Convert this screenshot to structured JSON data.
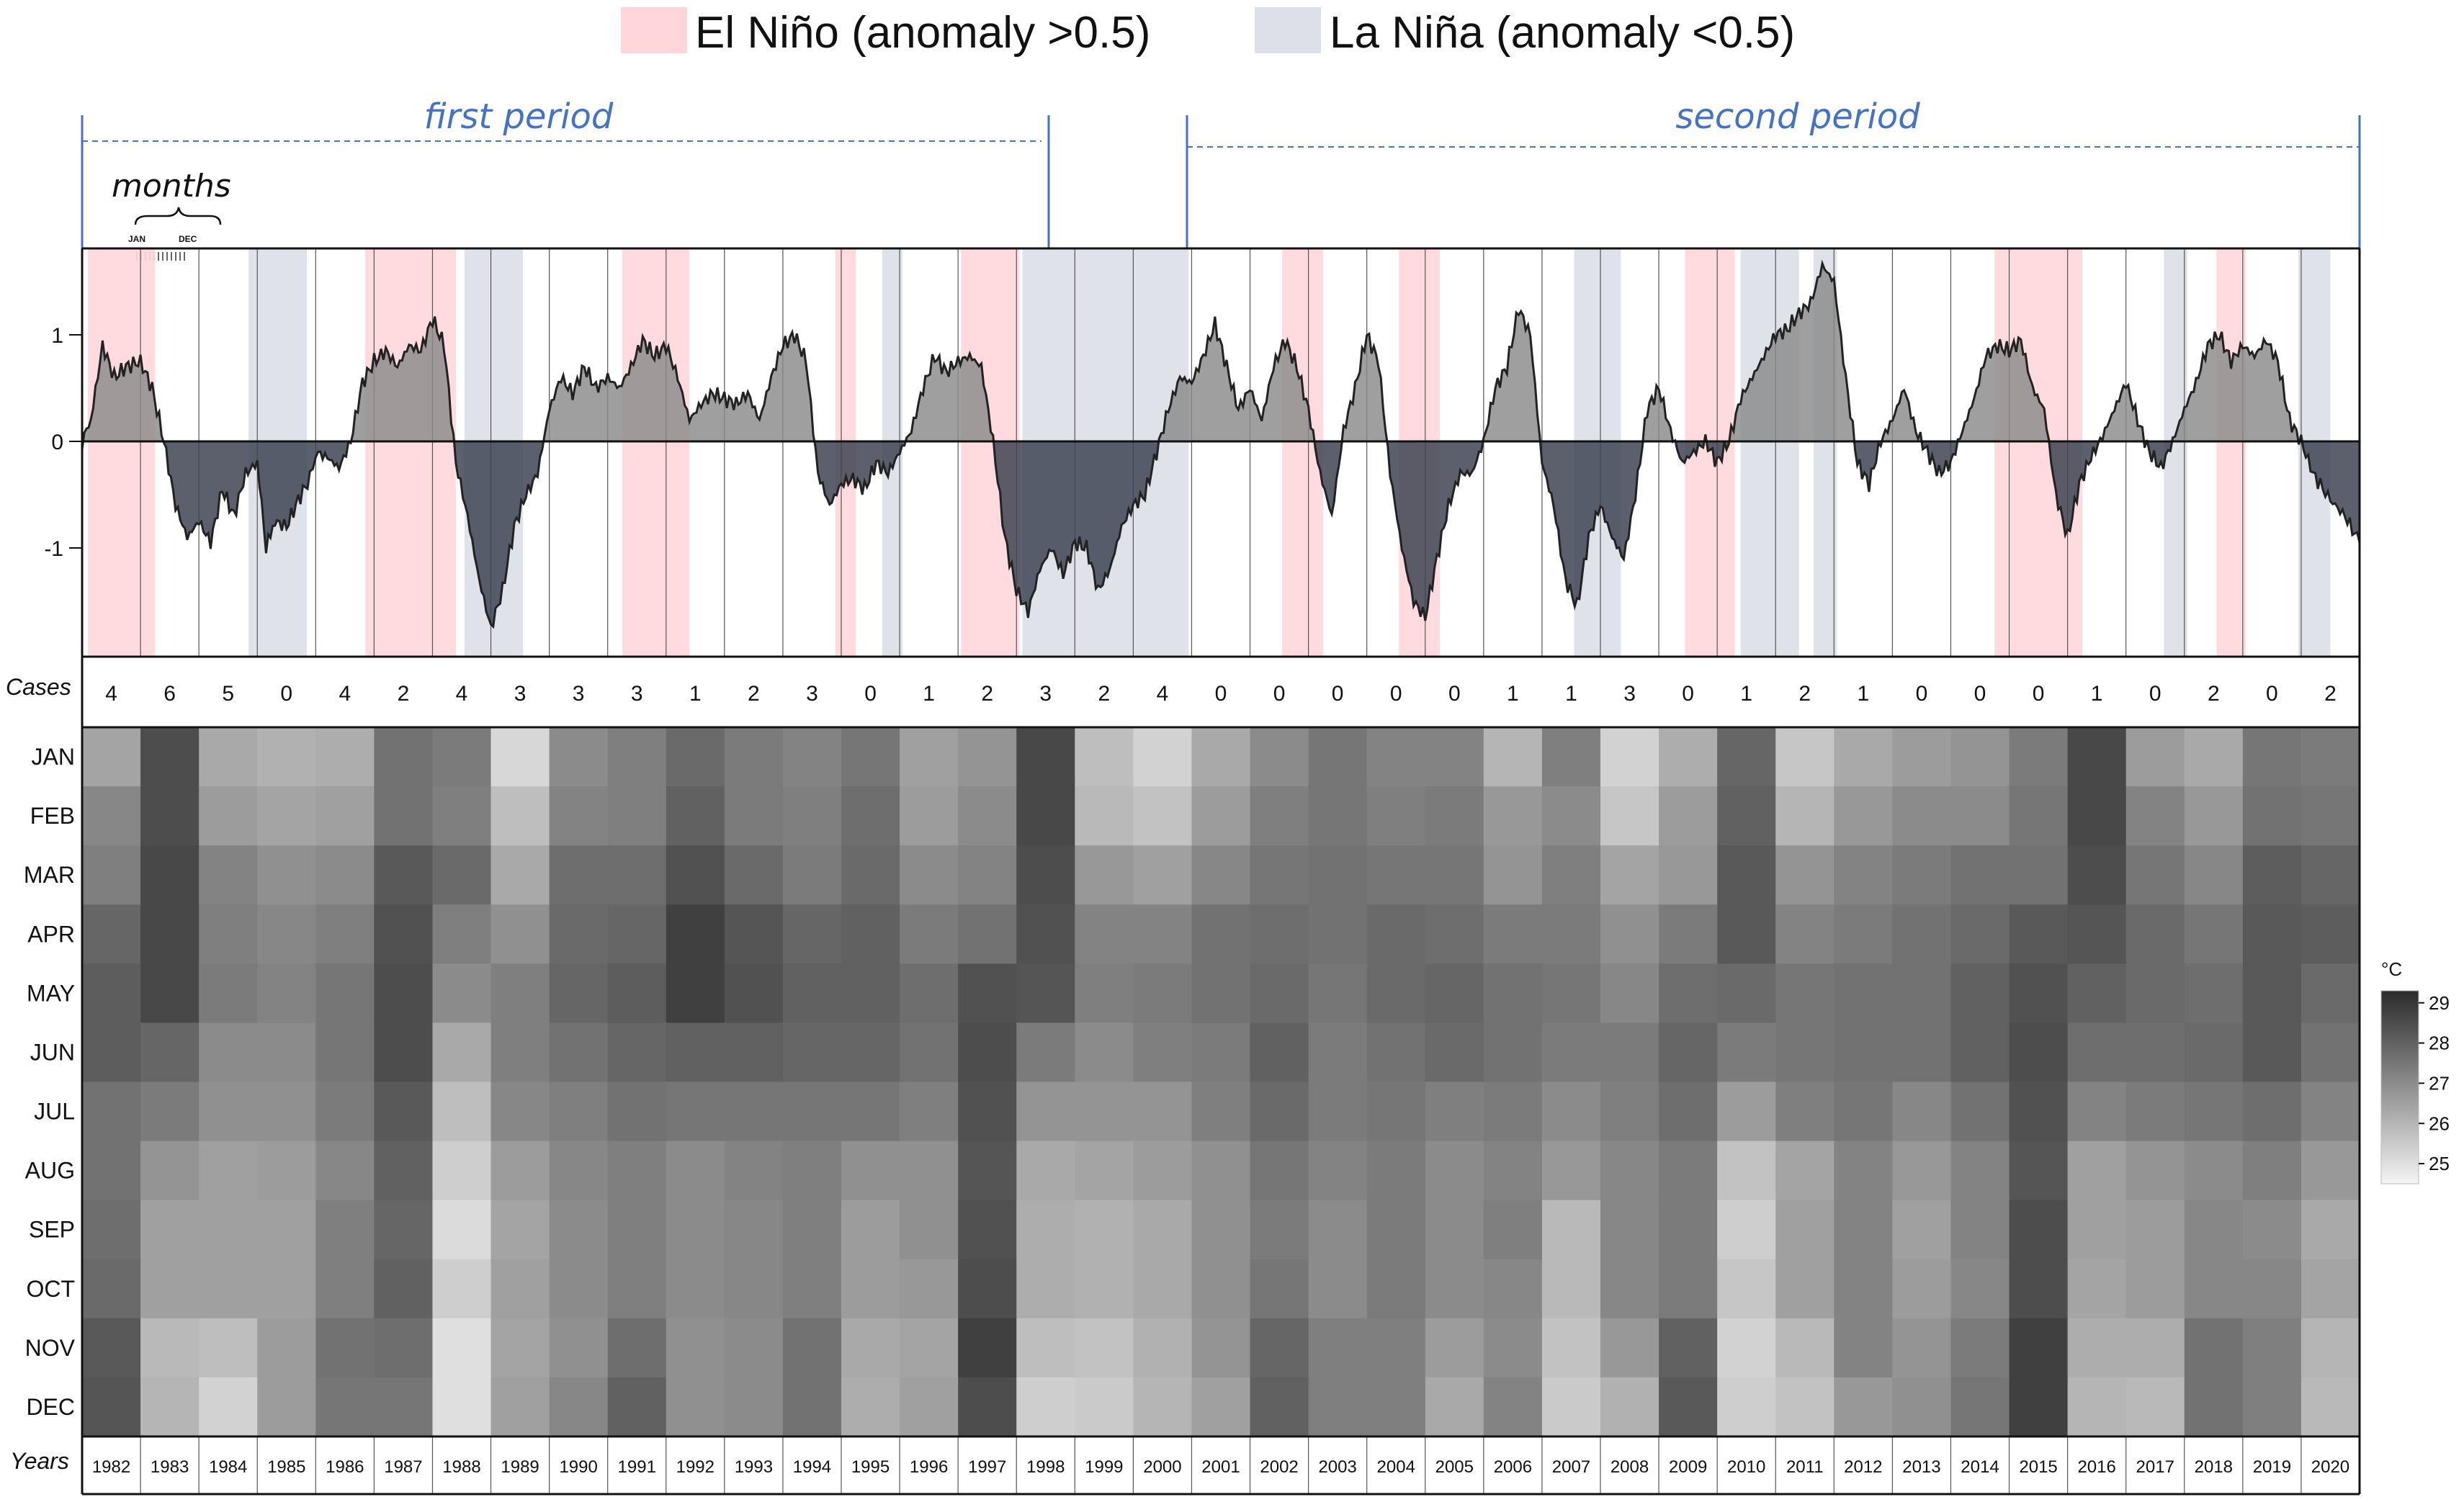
{
  "legend": {
    "el_nino_label": "El Niño (anomaly >0.5)",
    "la_nina_label": "La Niña (anomaly <0.5)",
    "el_nino_color": "#ffd6da",
    "la_nina_color": "#dde0e8"
  },
  "periods": {
    "first": "first period",
    "second": "second period",
    "months_label": "months",
    "jan_label": "JAN",
    "dec_label": "DEC",
    "color": "#4472c4"
  },
  "labels": {
    "cases": "Cases",
    "years": "Years",
    "colorbar_unit": "°C"
  },
  "chart_data": {
    "type": "area",
    "title": "",
    "ylim": [
      -1.95,
      1.7
    ],
    "yticks": [
      1,
      0,
      -1
    ],
    "ytick_labels": [
      "1",
      "0",
      "-1"
    ],
    "years": [
      "1982",
      "1983",
      "1984",
      "1985",
      "1986",
      "1987",
      "1988",
      "1989",
      "1990",
      "1991",
      "1992",
      "1993",
      "1994",
      "1995",
      "1996",
      "1997",
      "1998",
      "1999",
      "2000",
      "2001",
      "2002",
      "2003",
      "2004",
      "2005",
      "2006",
      "2007",
      "2008",
      "2009",
      "2010",
      "2011",
      "2012",
      "2013",
      "2014",
      "2015",
      "2016",
      "2017",
      "2018",
      "2019",
      "2020"
    ],
    "cases": [
      4,
      6,
      5,
      0,
      4,
      2,
      4,
      3,
      3,
      3,
      1,
      2,
      3,
      0,
      1,
      2,
      3,
      2,
      4,
      0,
      0,
      0,
      0,
      0,
      1,
      1,
      3,
      0,
      1,
      2,
      1,
      0,
      0,
      0,
      1,
      0,
      2,
      0,
      2
    ],
    "anomaly_keypoints": [
      [
        1982.0,
        0.0
      ],
      [
        1982.15,
        0.2
      ],
      [
        1982.35,
        0.9
      ],
      [
        1982.55,
        0.6
      ],
      [
        1982.75,
        0.7
      ],
      [
        1983.0,
        0.75
      ],
      [
        1983.2,
        0.5
      ],
      [
        1983.4,
        0.0
      ],
      [
        1983.6,
        -0.6
      ],
      [
        1983.8,
        -0.9
      ],
      [
        1984.0,
        -0.75
      ],
      [
        1984.2,
        -0.95
      ],
      [
        1984.4,
        -0.45
      ],
      [
        1984.6,
        -0.7
      ],
      [
        1984.8,
        -0.3
      ],
      [
        1985.0,
        -0.2
      ],
      [
        1985.15,
        -1.0
      ],
      [
        1985.3,
        -0.75
      ],
      [
        1985.5,
        -0.8
      ],
      [
        1985.7,
        -0.55
      ],
      [
        1985.9,
        -0.35
      ],
      [
        1986.0,
        -0.1
      ],
      [
        1986.2,
        -0.15
      ],
      [
        1986.4,
        -0.25
      ],
      [
        1986.6,
        0.0
      ],
      [
        1986.8,
        0.55
      ],
      [
        1987.0,
        0.75
      ],
      [
        1987.2,
        0.85
      ],
      [
        1987.4,
        0.7
      ],
      [
        1987.6,
        0.9
      ],
      [
        1987.8,
        0.85
      ],
      [
        1988.0,
        1.15
      ],
      [
        1988.2,
        0.9
      ],
      [
        1988.4,
        -0.2
      ],
      [
        1988.6,
        -0.7
      ],
      [
        1988.8,
        -1.3
      ],
      [
        1989.0,
        -1.75
      ],
      [
        1989.2,
        -1.4
      ],
      [
        1989.4,
        -0.8
      ],
      [
        1989.6,
        -0.5
      ],
      [
        1989.8,
        -0.3
      ],
      [
        1990.0,
        0.3
      ],
      [
        1990.2,
        0.6
      ],
      [
        1990.4,
        0.45
      ],
      [
        1990.6,
        0.7
      ],
      [
        1990.8,
        0.5
      ],
      [
        1991.0,
        0.6
      ],
      [
        1991.2,
        0.5
      ],
      [
        1991.4,
        0.7
      ],
      [
        1991.6,
        0.95
      ],
      [
        1991.8,
        0.8
      ],
      [
        1992.0,
        0.9
      ],
      [
        1992.2,
        0.6
      ],
      [
        1992.4,
        0.2
      ],
      [
        1992.6,
        0.35
      ],
      [
        1992.8,
        0.45
      ],
      [
        1993.0,
        0.4
      ],
      [
        1993.2,
        0.35
      ],
      [
        1993.4,
        0.45
      ],
      [
        1993.6,
        0.2
      ],
      [
        1993.8,
        0.6
      ],
      [
        1994.0,
        0.9
      ],
      [
        1994.2,
        1.0
      ],
      [
        1994.4,
        0.75
      ],
      [
        1994.6,
        -0.3
      ],
      [
        1994.8,
        -0.6
      ],
      [
        1995.0,
        -0.4
      ],
      [
        1995.2,
        -0.35
      ],
      [
        1995.4,
        -0.45
      ],
      [
        1995.6,
        -0.2
      ],
      [
        1995.8,
        -0.3
      ],
      [
        1996.0,
        -0.1
      ],
      [
        1996.2,
        0.1
      ],
      [
        1996.4,
        0.5
      ],
      [
        1996.6,
        0.8
      ],
      [
        1996.8,
        0.65
      ],
      [
        1997.0,
        0.75
      ],
      [
        1997.2,
        0.8
      ],
      [
        1997.4,
        0.7
      ],
      [
        1997.6,
        0.0
      ],
      [
        1997.8,
        -0.9
      ],
      [
        1998.0,
        -1.4
      ],
      [
        1998.2,
        -1.6
      ],
      [
        1998.4,
        -1.2
      ],
      [
        1998.6,
        -1.0
      ],
      [
        1998.8,
        -1.25
      ],
      [
        1999.0,
        -0.95
      ],
      [
        1999.2,
        -1.0
      ],
      [
        1999.4,
        -1.4
      ],
      [
        1999.6,
        -1.2
      ],
      [
        1999.8,
        -0.8
      ],
      [
        2000.0,
        -0.6
      ],
      [
        2000.2,
        -0.5
      ],
      [
        2000.4,
        -0.1
      ],
      [
        2000.6,
        0.3
      ],
      [
        2000.8,
        0.6
      ],
      [
        2001.0,
        0.55
      ],
      [
        2001.2,
        0.8
      ],
      [
        2001.4,
        1.1
      ],
      [
        2001.6,
        0.7
      ],
      [
        2001.8,
        0.3
      ],
      [
        2002.0,
        0.5
      ],
      [
        2002.2,
        0.2
      ],
      [
        2002.4,
        0.7
      ],
      [
        2002.6,
        0.95
      ],
      [
        2002.8,
        0.7
      ],
      [
        2003.0,
        0.3
      ],
      [
        2003.2,
        -0.3
      ],
      [
        2003.4,
        -0.7
      ],
      [
        2003.6,
        0.1
      ],
      [
        2003.8,
        0.5
      ],
      [
        2004.0,
        1.0
      ],
      [
        2004.2,
        0.75
      ],
      [
        2004.4,
        -0.3
      ],
      [
        2004.6,
        -1.0
      ],
      [
        2004.8,
        -1.5
      ],
      [
        2005.0,
        -1.65
      ],
      [
        2005.2,
        -1.1
      ],
      [
        2005.4,
        -0.6
      ],
      [
        2005.6,
        -0.3
      ],
      [
        2005.8,
        -0.3
      ],
      [
        2006.0,
        0.0
      ],
      [
        2006.2,
        0.5
      ],
      [
        2006.4,
        0.7
      ],
      [
        2006.6,
        1.25
      ],
      [
        2006.8,
        1.0
      ],
      [
        2007.0,
        -0.2
      ],
      [
        2007.2,
        -0.6
      ],
      [
        2007.4,
        -1.3
      ],
      [
        2007.6,
        -1.55
      ],
      [
        2007.8,
        -0.9
      ],
      [
        2008.0,
        -0.6
      ],
      [
        2008.2,
        -0.9
      ],
      [
        2008.4,
        -1.1
      ],
      [
        2008.6,
        -0.5
      ],
      [
        2008.8,
        0.3
      ],
      [
        2009.0,
        0.5
      ],
      [
        2009.2,
        0.1
      ],
      [
        2009.4,
        -0.2
      ],
      [
        2009.6,
        -0.1
      ],
      [
        2009.8,
        0.0
      ],
      [
        2010.0,
        -0.2
      ],
      [
        2010.2,
        0.0
      ],
      [
        2010.4,
        0.4
      ],
      [
        2010.6,
        0.6
      ],
      [
        2010.8,
        0.8
      ],
      [
        2011.0,
        1.0
      ],
      [
        2011.2,
        1.05
      ],
      [
        2011.4,
        1.2
      ],
      [
        2011.6,
        1.3
      ],
      [
        2011.8,
        1.65
      ],
      [
        2012.0,
        1.5
      ],
      [
        2012.2,
        0.6
      ],
      [
        2012.4,
        -0.2
      ],
      [
        2012.6,
        -0.4
      ],
      [
        2012.8,
        0.0
      ],
      [
        2013.0,
        0.2
      ],
      [
        2013.2,
        0.5
      ],
      [
        2013.4,
        0.1
      ],
      [
        2013.6,
        -0.1
      ],
      [
        2013.8,
        -0.3
      ],
      [
        2014.0,
        -0.2
      ],
      [
        2014.2,
        0.1
      ],
      [
        2014.4,
        0.4
      ],
      [
        2014.6,
        0.8
      ],
      [
        2014.8,
        0.9
      ],
      [
        2015.0,
        0.85
      ],
      [
        2015.2,
        0.95
      ],
      [
        2015.4,
        0.5
      ],
      [
        2015.6,
        0.3
      ],
      [
        2015.8,
        -0.5
      ],
      [
        2016.0,
        -0.9
      ]
    ],
    "el_nino_spans": [
      [
        1982.1,
        1983.25
      ],
      [
        1986.85,
        1988.4
      ],
      [
        1991.25,
        1992.4
      ],
      [
        1994.9,
        1995.25
      ],
      [
        1997.05,
        1998.05
      ],
      [
        2002.55,
        2003.25
      ],
      [
        2004.55,
        2005.25
      ],
      [
        2009.45,
        2010.3
      ],
      [
        2014.75,
        2016.25
      ],
      [
        2018.55,
        2019.05
      ]
    ],
    "la_nina_spans": [
      [
        1984.85,
        1985.85
      ],
      [
        1988.55,
        1989.55
      ],
      [
        1995.7,
        1996.05
      ],
      [
        1998.1,
        2000.95
      ],
      [
        2007.55,
        2008.35
      ],
      [
        2010.4,
        2011.4
      ],
      [
        2011.65,
        2012.05
      ],
      [
        2017.65,
        2018.05
      ],
      [
        2019.95,
        2020.5
      ]
    ],
    "heatmap": {
      "rows": [
        "JAN",
        "FEB",
        "MAR",
        "APR",
        "MAY",
        "JUN",
        "JUL",
        "AUG",
        "SEP",
        "OCT",
        "NOV",
        "DEC"
      ],
      "colorbar": {
        "label": "°C",
        "ticks": [
          29,
          28,
          27,
          26,
          25
        ],
        "range": [
          24.5,
          29.3
        ]
      },
      "values": [
        [
          26.4,
          28.5,
          26.3,
          26.1,
          26.2,
          27.6,
          27.4,
          25.2,
          27.0,
          27.3,
          27.8,
          27.4,
          27.2,
          27.5,
          26.5,
          26.8,
          28.6,
          25.8,
          25.3,
          26.3,
          27.0,
          27.5,
          27.2,
          27.2,
          26.0,
          27.3,
          25.3,
          26.2,
          27.9,
          25.6,
          26.3,
          26.6,
          26.8,
          27.4,
          28.6,
          26.6,
          26.3,
          27.5,
          27.4
        ],
        [
          27.1,
          28.5,
          26.6,
          26.4,
          26.5,
          27.6,
          27.3,
          25.8,
          27.2,
          27.3,
          28.0,
          27.4,
          27.3,
          27.7,
          26.6,
          27.0,
          28.6,
          25.9,
          25.7,
          26.6,
          27.3,
          27.5,
          27.3,
          27.4,
          26.7,
          27.0,
          25.6,
          26.6,
          28.0,
          26.0,
          26.7,
          27.0,
          27.0,
          27.5,
          28.6,
          27.2,
          26.7,
          27.6,
          27.5
        ],
        [
          27.3,
          28.6,
          27.2,
          26.9,
          27.0,
          28.2,
          27.8,
          26.3,
          27.7,
          27.7,
          28.4,
          27.8,
          27.4,
          27.8,
          27.0,
          27.2,
          28.5,
          26.7,
          26.5,
          27.1,
          27.5,
          27.6,
          27.5,
          27.5,
          26.8,
          27.3,
          26.4,
          26.7,
          28.2,
          26.8,
          27.2,
          27.4,
          27.6,
          27.6,
          28.5,
          27.5,
          27.1,
          28.1,
          27.9
        ],
        [
          27.9,
          28.6,
          27.3,
          27.1,
          27.3,
          28.4,
          27.3,
          26.9,
          27.8,
          27.9,
          28.8,
          28.3,
          27.9,
          28.0,
          27.4,
          27.6,
          28.4,
          27.2,
          27.2,
          27.6,
          27.7,
          27.6,
          27.8,
          27.7,
          27.4,
          27.4,
          26.9,
          27.4,
          28.2,
          27.2,
          27.4,
          27.6,
          27.8,
          28.2,
          28.3,
          27.8,
          27.5,
          28.2,
          28.1
        ],
        [
          28.1,
          28.6,
          27.4,
          27.2,
          27.5,
          28.5,
          27.0,
          27.3,
          27.9,
          28.1,
          28.8,
          28.4,
          28.0,
          28.0,
          27.7,
          28.4,
          28.3,
          27.3,
          27.4,
          27.6,
          27.8,
          27.5,
          27.8,
          27.9,
          27.6,
          27.5,
          27.1,
          27.7,
          27.8,
          27.5,
          27.6,
          27.6,
          28.0,
          28.4,
          28.0,
          27.8,
          27.7,
          28.2,
          27.8
        ],
        [
          28.1,
          27.9,
          27.0,
          27.0,
          27.5,
          28.5,
          26.3,
          27.3,
          27.6,
          27.9,
          28.0,
          28.0,
          27.9,
          27.9,
          27.6,
          28.5,
          27.4,
          27.0,
          27.3,
          27.4,
          28.0,
          27.4,
          27.6,
          27.8,
          27.6,
          27.4,
          27.4,
          27.9,
          27.4,
          27.5,
          27.6,
          27.6,
          28.0,
          28.5,
          27.7,
          27.7,
          27.8,
          28.2,
          27.6
        ],
        [
          27.6,
          27.4,
          26.9,
          26.9,
          27.4,
          28.2,
          25.8,
          27.1,
          27.3,
          27.6,
          27.5,
          27.5,
          27.5,
          27.5,
          27.3,
          28.4,
          26.8,
          26.8,
          26.8,
          27.3,
          27.8,
          27.4,
          27.5,
          27.3,
          27.4,
          27.0,
          27.3,
          27.7,
          26.6,
          27.3,
          27.5,
          27.1,
          27.6,
          28.4,
          27.2,
          27.4,
          27.5,
          27.7,
          27.2
        ],
        [
          27.6,
          26.8,
          26.5,
          26.6,
          27.1,
          28.0,
          25.4,
          26.6,
          27.1,
          27.3,
          27.0,
          27.2,
          27.3,
          26.9,
          26.9,
          28.3,
          26.3,
          26.4,
          26.6,
          26.9,
          27.5,
          27.2,
          27.4,
          27.0,
          27.2,
          26.7,
          27.1,
          27.4,
          25.7,
          26.4,
          27.2,
          26.7,
          27.2,
          28.3,
          26.5,
          26.8,
          27.0,
          27.3,
          26.7
        ],
        [
          27.7,
          26.5,
          26.5,
          26.5,
          27.3,
          27.9,
          25.1,
          26.4,
          27.0,
          27.3,
          27.0,
          27.1,
          27.3,
          26.6,
          26.9,
          28.4,
          26.2,
          26.1,
          26.3,
          26.9,
          27.4,
          27.0,
          27.4,
          27.0,
          27.3,
          25.9,
          27.1,
          27.4,
          25.4,
          26.5,
          27.2,
          26.5,
          27.2,
          28.5,
          26.5,
          26.6,
          27.1,
          27.0,
          26.3
        ],
        [
          27.8,
          26.5,
          26.5,
          26.5,
          27.3,
          28.0,
          25.4,
          26.5,
          27.0,
          27.3,
          27.0,
          27.1,
          27.3,
          26.6,
          26.7,
          28.5,
          26.2,
          26.1,
          26.3,
          26.9,
          27.5,
          27.0,
          27.4,
          27.0,
          27.1,
          25.9,
          27.1,
          27.4,
          25.6,
          26.5,
          27.2,
          26.6,
          27.1,
          28.5,
          26.4,
          26.6,
          27.1,
          27.1,
          26.4
        ],
        [
          28.2,
          25.9,
          25.8,
          26.6,
          27.6,
          27.7,
          25.0,
          26.4,
          26.9,
          27.7,
          26.9,
          27.0,
          27.6,
          26.3,
          26.4,
          28.8,
          25.8,
          25.7,
          26.1,
          26.8,
          27.9,
          27.3,
          27.3,
          26.6,
          27.0,
          25.7,
          26.7,
          28.0,
          25.3,
          25.9,
          27.2,
          26.8,
          27.4,
          28.8,
          26.2,
          26.2,
          27.6,
          27.3,
          26.0
        ],
        [
          28.3,
          26.0,
          25.3,
          26.6,
          27.5,
          27.5,
          25.0,
          26.5,
          27.1,
          28.0,
          26.9,
          27.0,
          27.6,
          26.2,
          26.5,
          28.5,
          25.4,
          25.5,
          26.0,
          26.5,
          28.0,
          27.3,
          27.3,
          26.3,
          27.2,
          25.5,
          26.1,
          28.2,
          25.4,
          25.7,
          26.7,
          26.9,
          27.5,
          28.8,
          26.0,
          25.9,
          27.6,
          27.3,
          25.9
        ]
      ]
    }
  }
}
